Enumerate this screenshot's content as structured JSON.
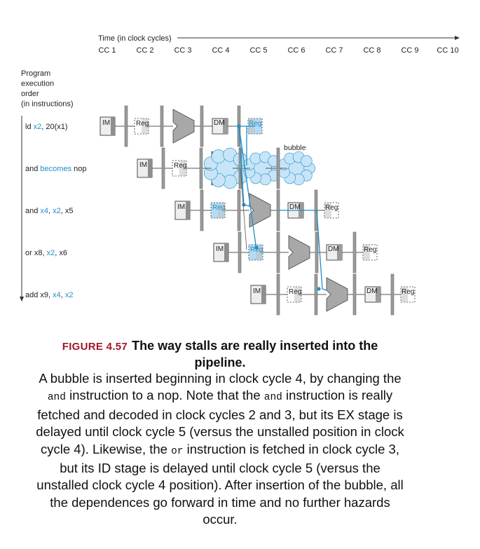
{
  "diagram": {
    "time_axis": {
      "title": "Time (in clock cycles)",
      "cycles": [
        "CC 1",
        "CC 2",
        "CC 3",
        "CC 4",
        "CC 5",
        "CC 6",
        "CC 7",
        "CC 8",
        "CC 9",
        "CC 10"
      ]
    },
    "program_axis": {
      "title_lines": [
        "Program",
        "execution",
        "order",
        "(in instructions)"
      ]
    },
    "instructions": [
      {
        "parts": [
          {
            "text": "ld ",
            "color": "#222222"
          },
          {
            "text": "x2",
            "color": "#1f8fc7"
          },
          {
            "text": ", 20(x1)",
            "color": "#222222"
          }
        ]
      },
      {
        "parts": [
          {
            "text": "and ",
            "color": "#222222"
          },
          {
            "text": "becomes",
            "color": "#1f8fc7"
          },
          {
            "text": " nop",
            "color": "#222222"
          }
        ]
      },
      {
        "parts": [
          {
            "text": "and ",
            "color": "#222222"
          },
          {
            "text": "x4",
            "color": "#1f8fc7"
          },
          {
            "text": ", ",
            "color": "#222222"
          },
          {
            "text": "x2",
            "color": "#1f8fc7"
          },
          {
            "text": ", x5",
            "color": "#222222"
          }
        ]
      },
      {
        "parts": [
          {
            "text": "or x8, ",
            "color": "#222222"
          },
          {
            "text": "x2",
            "color": "#1f8fc7"
          },
          {
            "text": ", x6",
            "color": "#222222"
          }
        ]
      },
      {
        "parts": [
          {
            "text": "add x9, ",
            "color": "#222222"
          },
          {
            "text": "x4",
            "color": "#1f8fc7"
          },
          {
            "text": ", ",
            "color": "#222222"
          },
          {
            "text": "x2",
            "color": "#1f8fc7"
          }
        ]
      }
    ],
    "stage_labels": {
      "im": "IM",
      "reg": "Reg",
      "dm": "DM"
    },
    "bubble_label": "bubble",
    "colors": {
      "forward_blue": "#1f8fc7",
      "highlight_fill": "#b6dcf3",
      "alu_gray": "#a8a8a8",
      "bar_gray": "#9a9a9a",
      "bubble_fill": "#c7e5f7",
      "figure_red": "#a0162c"
    }
  },
  "caption": {
    "figure_label": "FIGURE 4.57",
    "title": "The way stalls are really inserted into the pipeline.",
    "body": [
      {
        "t": "A bubble is inserted beginning in clock cycle 4, by changing the "
      },
      {
        "t": "and",
        "code": true
      },
      {
        "t": " instruction to a nop. Note that the "
      },
      {
        "t": "and",
        "code": true
      },
      {
        "t": " instruction is really fetched and decoded in clock cycles 2 and 3, but its EX stage is delayed until clock cycle 5 (versus the unstalled position in clock cycle 4). Likewise, the "
      },
      {
        "t": "or",
        "code": true
      },
      {
        "t": " instruction is fetched in clock cycle 3, but its ID stage is delayed until clock cycle 5 (versus the unstalled clock cycle 4 position). After insertion of the bubble, all the dependences go forward in time and no further hazards occur."
      }
    ]
  }
}
